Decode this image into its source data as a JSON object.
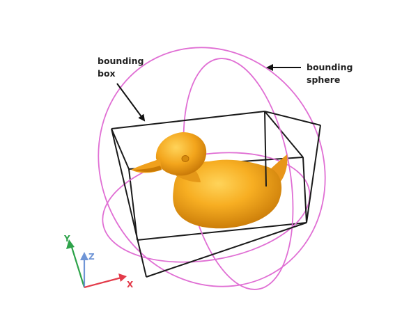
{
  "labels": {
    "bounding_box": {
      "line1": "bounding",
      "line2": "box"
    },
    "bounding_sphere": {
      "line1": "bounding",
      "line2": "sphere"
    }
  },
  "axes": {
    "x": {
      "text": "X",
      "color": "#e33b4a"
    },
    "y": {
      "text": "Y",
      "color": "#2ea34a"
    },
    "z": {
      "text": "Z",
      "color": "#6f95d6"
    }
  },
  "colors": {
    "sphere": "#e06fd4",
    "box": "#1a1a1a",
    "duck_light": "#ffc23a",
    "duck_mid": "#f4a61c",
    "duck_dark": "#c97a05",
    "arrow": "#111111"
  },
  "icons": {
    "object": "duck-mesh-icon"
  }
}
